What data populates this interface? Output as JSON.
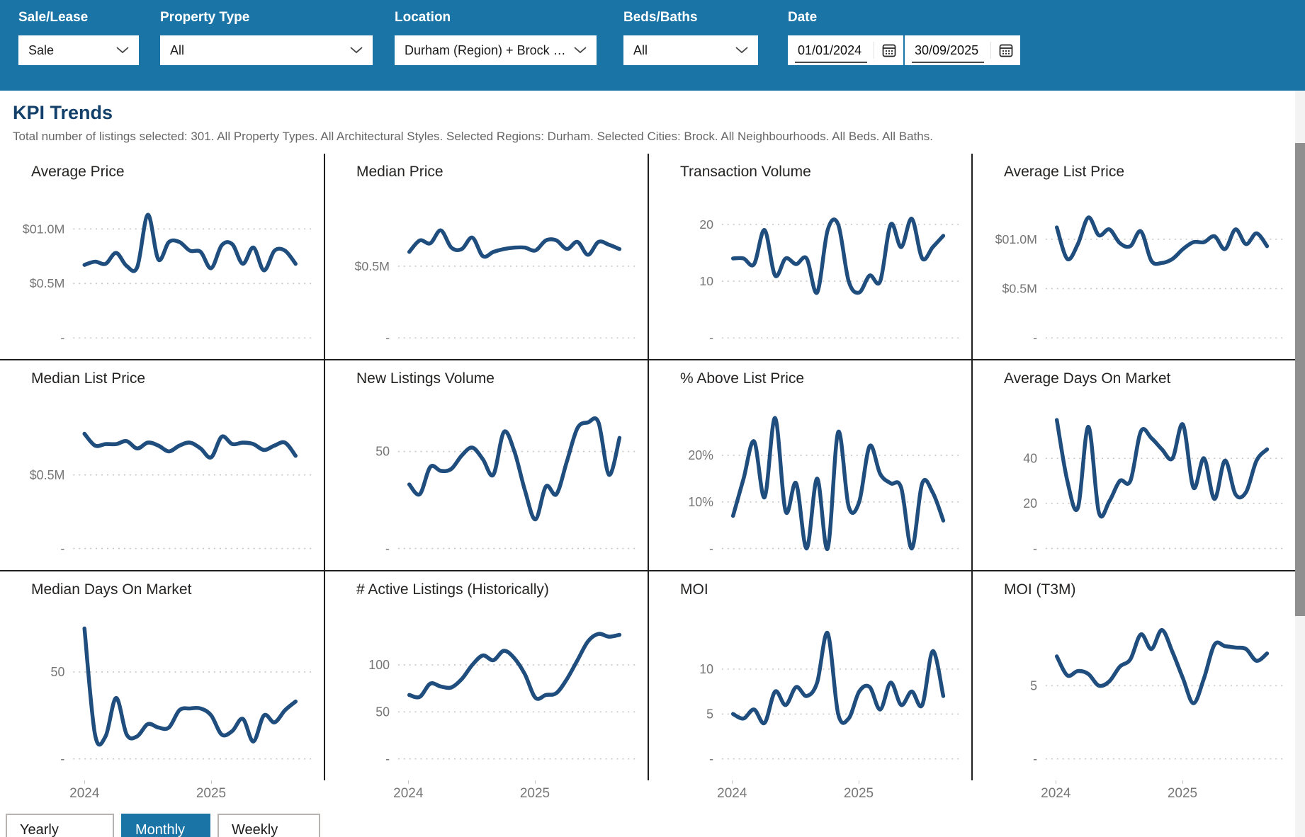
{
  "filters": {
    "sale_lease": {
      "label": "Sale/Lease",
      "value": "Sale"
    },
    "property_type": {
      "label": "Property Type",
      "value": "All"
    },
    "location": {
      "label": "Location",
      "value": "Durham (Region) + Brock (..."
    },
    "beds_baths": {
      "label": "Beds/Baths",
      "value": "All"
    },
    "date": {
      "label": "Date",
      "start": "01/01/2024",
      "end": "30/09/2025"
    }
  },
  "page": {
    "title": "KPI Trends",
    "subtitle": "Total number of listings selected: 301. All Property Types. All Architectural Styles. Selected Regions: Durham. Selected Cities: Brock. All Neighbourhoods. All Beds. All Baths."
  },
  "granularity": {
    "options": [
      "Yearly",
      "Monthly",
      "Weekly"
    ],
    "selected": "Monthly"
  },
  "icons": {
    "dropdown": "chevron-down-icon",
    "date_picker": "calendar-icon"
  },
  "colors": {
    "header_bg": "#1B74A6",
    "line": "#1F4E7E",
    "title": "#13406A",
    "subtitle": "#666666",
    "axis": "#767676",
    "grid_dots": "#C8C6C4",
    "divider": "#1F1F1F",
    "scrollbar_thumb": "#8F8F8F"
  },
  "x_axis": {
    "period_start": "2024-01",
    "period_end": "2025-09",
    "tick_labels": [
      "2024",
      "2025"
    ],
    "tick_point_indices": [
      0,
      12
    ]
  },
  "chart_data": [
    {
      "type": "line",
      "title": "Average Price",
      "ymax": 1.25,
      "y_ticks": [
        {
          "label": "$01.0M",
          "value": 1.0
        },
        {
          "label": "$0.5M",
          "value": 0.5
        },
        {
          "label": "-",
          "value": 0
        }
      ],
      "values": [
        0.67,
        0.7,
        0.68,
        0.78,
        0.66,
        0.65,
        1.13,
        0.72,
        0.88,
        0.88,
        0.8,
        0.79,
        0.64,
        0.85,
        0.86,
        0.68,
        0.83,
        0.62,
        0.8,
        0.8,
        0.68
      ]
    },
    {
      "type": "line",
      "title": "Median Price",
      "ymax": 0.95,
      "y_ticks": [
        {
          "label": "$0.5M",
          "value": 0.5
        },
        {
          "label": "-",
          "value": 0
        }
      ],
      "values": [
        0.6,
        0.68,
        0.66,
        0.75,
        0.63,
        0.62,
        0.7,
        0.57,
        0.6,
        0.62,
        0.63,
        0.63,
        0.61,
        0.68,
        0.68,
        0.62,
        0.67,
        0.58,
        0.67,
        0.65,
        0.62
      ]
    },
    {
      "type": "line",
      "title": "Transaction Volume",
      "ymax": 24,
      "y_ticks": [
        {
          "label": "20",
          "value": 20
        },
        {
          "label": "10",
          "value": 10
        },
        {
          "label": "-",
          "value": 0
        }
      ],
      "values": [
        14,
        14,
        13,
        19,
        11,
        14,
        13,
        14,
        8,
        19,
        20,
        10,
        8,
        11,
        10,
        20,
        16,
        21,
        14,
        16,
        18
      ]
    },
    {
      "type": "line",
      "title": "Average List Price",
      "ymax": 1.38,
      "y_ticks": [
        {
          "label": "$01.0M",
          "value": 1.0
        },
        {
          "label": "$0.5M",
          "value": 0.5
        },
        {
          "label": "-",
          "value": 0
        }
      ],
      "values": [
        1.12,
        0.8,
        0.95,
        1.22,
        1.04,
        1.1,
        0.96,
        0.93,
        1.08,
        0.78,
        0.76,
        0.8,
        0.9,
        0.97,
        0.97,
        1.03,
        0.9,
        1.1,
        0.95,
        1.06,
        0.93
      ]
    },
    {
      "type": "line",
      "title": "Median List Price",
      "ymax": 0.95,
      "y_ticks": [
        {
          "label": "$0.5M",
          "value": 0.5
        },
        {
          "label": "-",
          "value": 0
        }
      ],
      "values": [
        0.78,
        0.7,
        0.71,
        0.71,
        0.73,
        0.68,
        0.72,
        0.7,
        0.66,
        0.7,
        0.72,
        0.68,
        0.62,
        0.76,
        0.71,
        0.72,
        0.71,
        0.67,
        0.7,
        0.72,
        0.63
      ]
    },
    {
      "type": "line",
      "title": "New Listings Volume",
      "ymax": 72,
      "y_ticks": [
        {
          "label": "50",
          "value": 50
        },
        {
          "label": "-",
          "value": 0
        }
      ],
      "values": [
        33,
        28,
        42,
        40,
        41,
        48,
        52,
        46,
        38,
        60,
        50,
        30,
        15,
        32,
        28,
        45,
        62,
        65,
        65,
        38,
        57
      ]
    },
    {
      "type": "line",
      "title": "% Above List Price",
      "ymax": 30,
      "y_ticks": [
        {
          "label": "20%",
          "value": 20
        },
        {
          "label": "10%",
          "value": 10
        },
        {
          "label": "-",
          "value": 0
        }
      ],
      "values": [
        7,
        15,
        23,
        11,
        28,
        8,
        14,
        0,
        15,
        0,
        25,
        9,
        10,
        22,
        16,
        14,
        13,
        0,
        14,
        12,
        6
      ]
    },
    {
      "type": "line",
      "title": "Average Days On Market",
      "ymax": 62,
      "y_ticks": [
        {
          "label": "40",
          "value": 40
        },
        {
          "label": "20",
          "value": 20
        },
        {
          "label": "-",
          "value": 0
        }
      ],
      "values": [
        57,
        30,
        18,
        54,
        16,
        21,
        30,
        30,
        52,
        49,
        44,
        40,
        55,
        27,
        40,
        22,
        39,
        24,
        25,
        39,
        44
      ]
    },
    {
      "type": "line",
      "title": "Median Days On Market",
      "ymax": 80,
      "y_ticks": [
        {
          "label": "50",
          "value": 50
        },
        {
          "label": "-",
          "value": 0
        }
      ],
      "values": [
        75,
        14,
        13,
        35,
        14,
        13,
        20,
        18,
        18,
        28,
        29,
        29,
        25,
        14,
        16,
        23,
        10,
        25,
        21,
        28,
        33
      ]
    },
    {
      "type": "line",
      "title": "# Active Listings (Historically)",
      "ymax": 148,
      "y_ticks": [
        {
          "label": "100",
          "value": 100
        },
        {
          "label": "50",
          "value": 50
        },
        {
          "label": "-",
          "value": 0
        }
      ],
      "values": [
        68,
        66,
        80,
        77,
        76,
        85,
        100,
        110,
        105,
        115,
        107,
        90,
        65,
        68,
        70,
        85,
        105,
        125,
        133,
        130,
        132
      ]
    },
    {
      "type": "line",
      "title": "MOI",
      "ymax": 15.5,
      "y_ticks": [
        {
          "label": "10",
          "value": 10
        },
        {
          "label": "5",
          "value": 5
        },
        {
          "label": "-",
          "value": 0
        }
      ],
      "values": [
        5,
        4.5,
        5.5,
        4,
        7.5,
        6,
        8,
        7,
        8.5,
        14,
        5,
        4.5,
        7.5,
        8,
        5.5,
        8.5,
        6,
        7.5,
        6,
        12,
        7
      ]
    },
    {
      "type": "line",
      "title": "MOI (T3M)",
      "ymax": 9.5,
      "y_ticks": [
        {
          "label": "5",
          "value": 5
        },
        {
          "label": "-",
          "value": 0
        }
      ],
      "values": [
        7,
        5.7,
        6,
        5.8,
        5,
        5.3,
        6.3,
        6.8,
        8.5,
        7.5,
        8.8,
        7.3,
        5.5,
        3.8,
        5.5,
        7.8,
        7.7,
        7.6,
        7.5,
        6.7,
        7.2
      ]
    }
  ]
}
